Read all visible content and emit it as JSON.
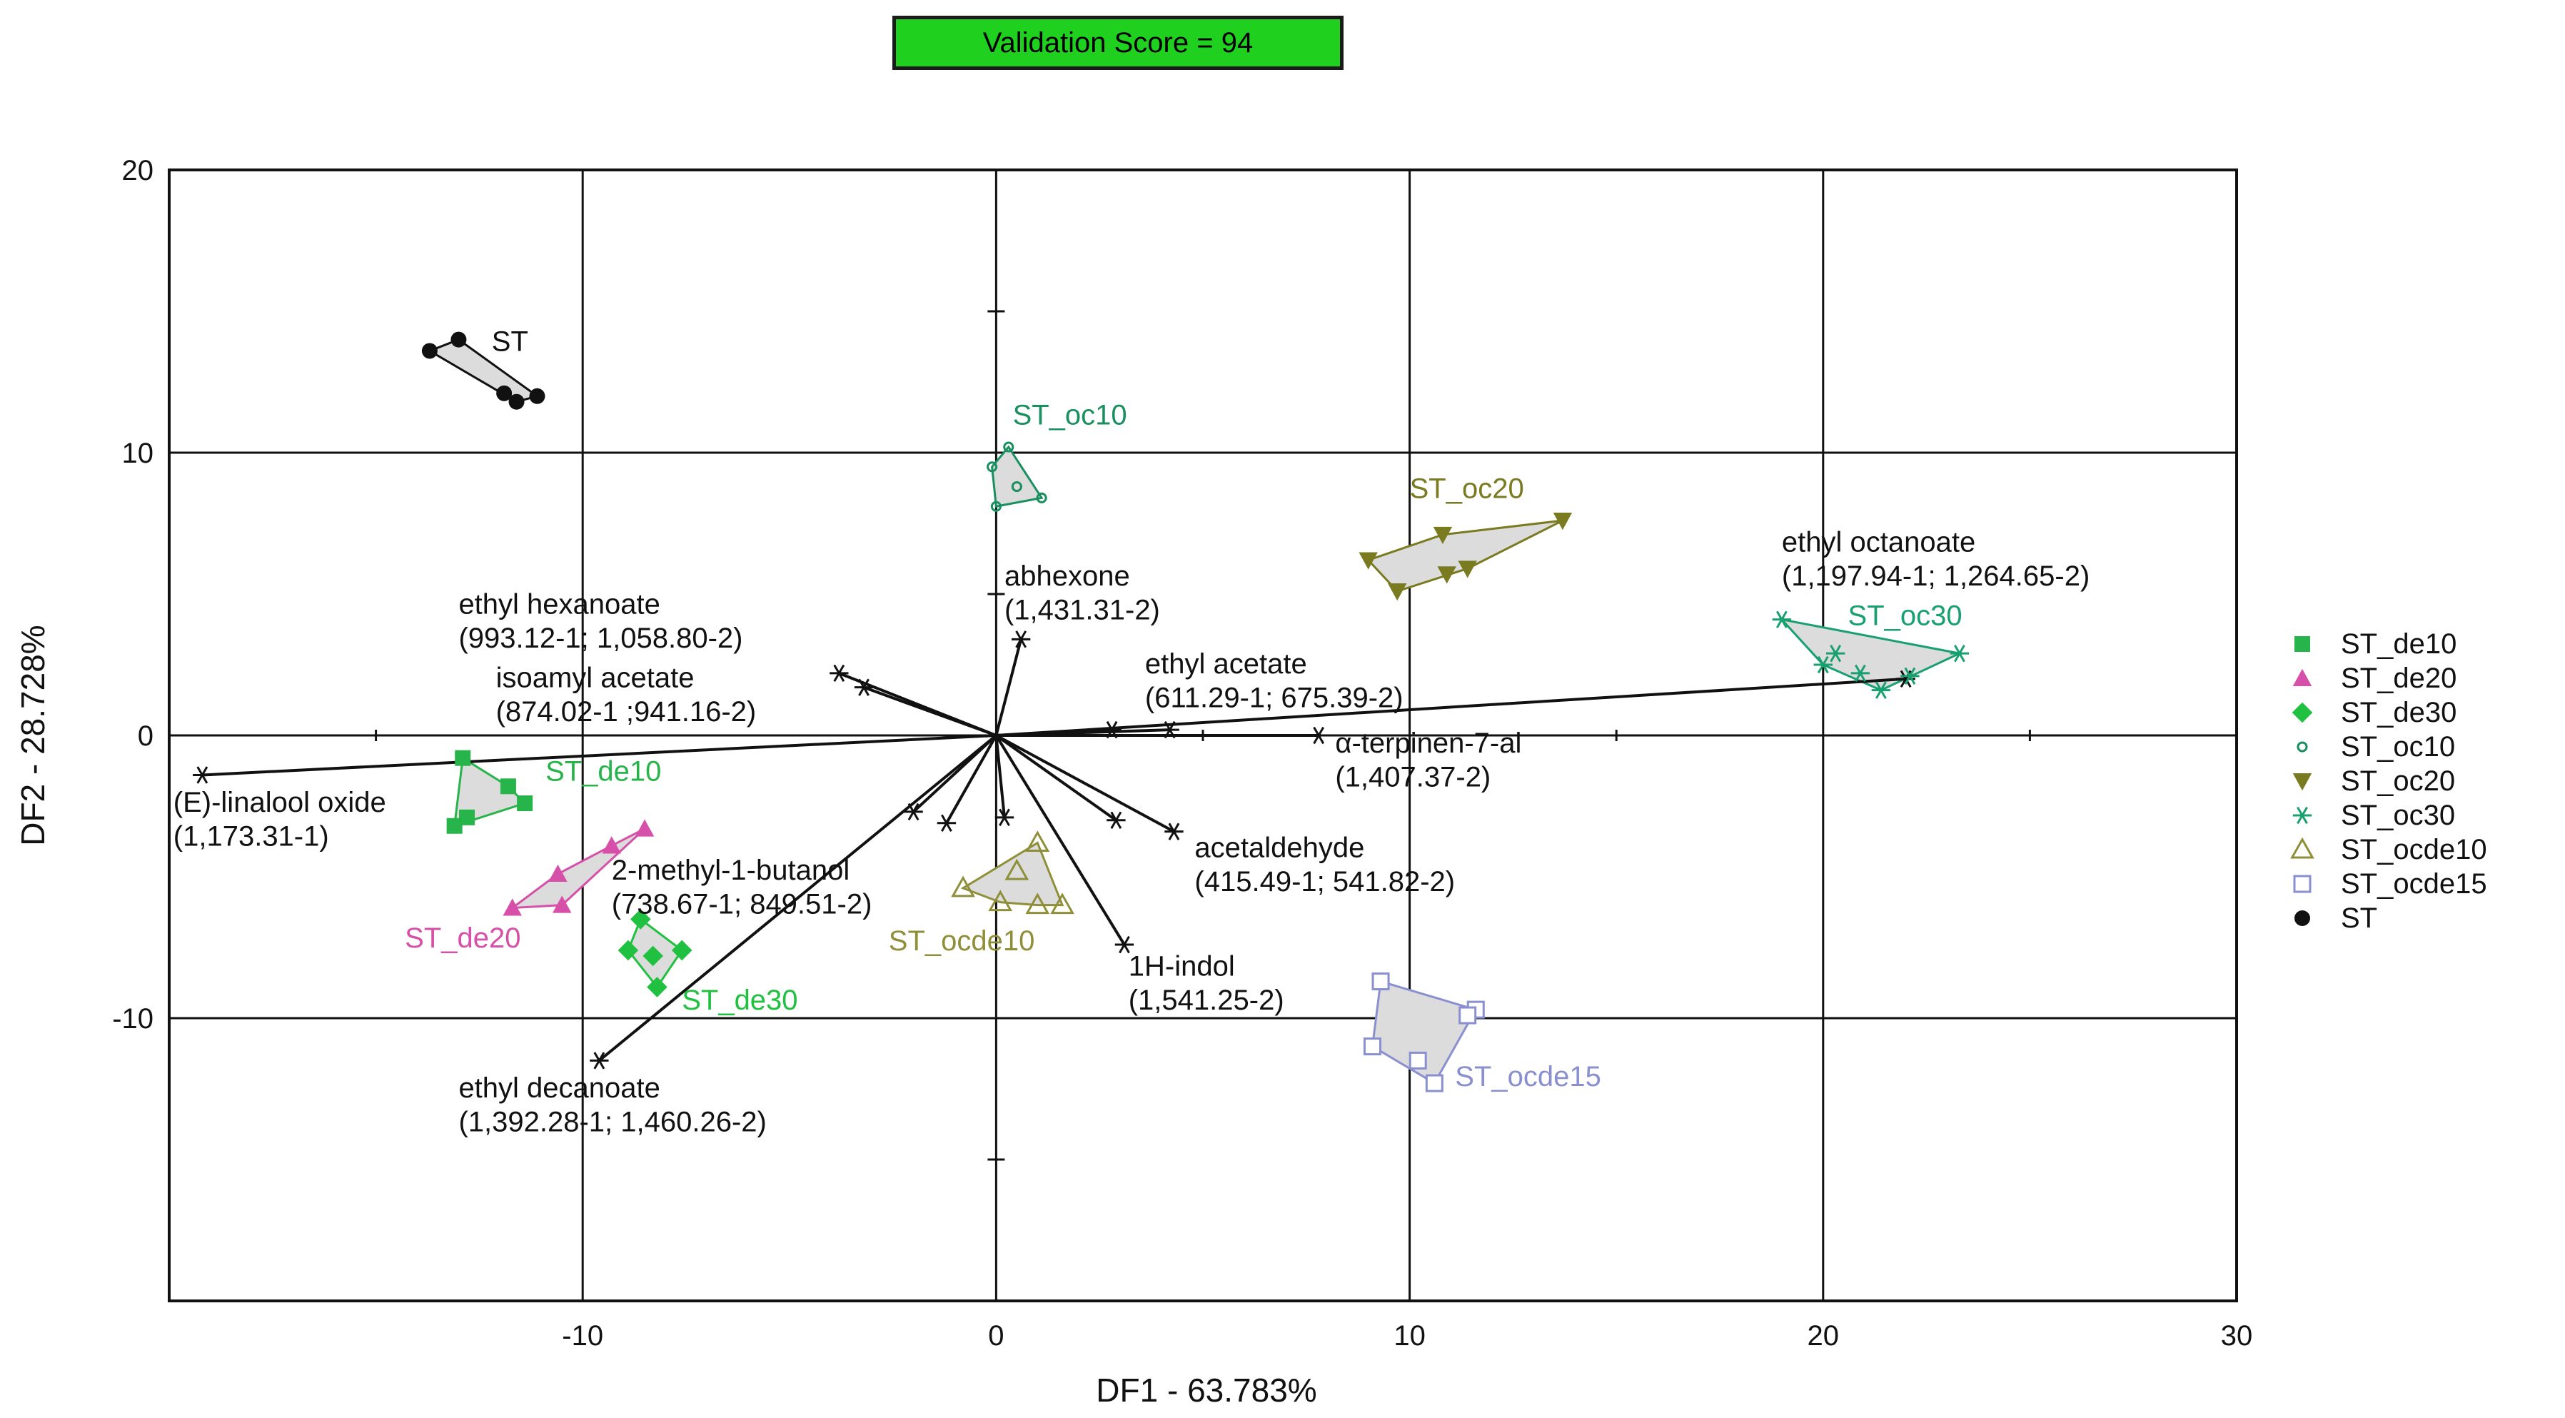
{
  "badge": {
    "label": "Validation Score = 94"
  },
  "axes": {
    "xlabel": "DF1 - 63.783%",
    "ylabel": "DF2 - 28.728%"
  },
  "chart_data": {
    "type": "scatter",
    "title": "",
    "xlabel": "DF1 - 63.783%",
    "ylabel": "DF2 - 28.728%",
    "xlim": [
      -20,
      30
    ],
    "ylim": [
      -20,
      20
    ],
    "xticks": [
      -10,
      0,
      10,
      20,
      30
    ],
    "yticks": [
      20,
      10,
      0,
      -10
    ],
    "grid": true,
    "legend_position": "right",
    "groups": [
      {
        "name": "ST_de10",
        "color": "#27b44a",
        "marker": "square-filled",
        "label": "ST_de10",
        "points": [
          [
            -12.9,
            -0.8
          ],
          [
            -13.1,
            -3.2
          ],
          [
            -12.8,
            -2.9
          ],
          [
            -11.8,
            -1.8
          ],
          [
            -11.4,
            -2.4
          ]
        ]
      },
      {
        "name": "ST_de20",
        "color": "#d64fa8",
        "marker": "triangle-filled",
        "label": "ST_de20",
        "points": [
          [
            -11.7,
            -6.1
          ],
          [
            -10.5,
            -6.0
          ],
          [
            -10.6,
            -4.9
          ],
          [
            -9.3,
            -3.9
          ],
          [
            -8.5,
            -3.3
          ]
        ]
      },
      {
        "name": "ST_de30",
        "color": "#20c040",
        "marker": "diamond-filled",
        "label": "ST_de30",
        "points": [
          [
            -8.9,
            -7.6
          ],
          [
            -8.6,
            -6.5
          ],
          [
            -8.3,
            -7.8
          ],
          [
            -8.2,
            -8.9
          ],
          [
            -7.6,
            -7.6
          ]
        ]
      },
      {
        "name": "ST_oc10",
        "color": "#1a9060",
        "marker": "circle-small",
        "label": "ST_oc10",
        "points": [
          [
            0.3,
            10.2
          ],
          [
            -0.1,
            9.5
          ],
          [
            0.0,
            8.1
          ],
          [
            1.1,
            8.4
          ],
          [
            0.5,
            8.8
          ]
        ]
      },
      {
        "name": "ST_oc20",
        "color": "#7a7a20",
        "marker": "triangle-down-filled",
        "label": "ST_oc20",
        "points": [
          [
            9.0,
            6.2
          ],
          [
            9.7,
            5.1
          ],
          [
            10.9,
            5.7
          ],
          [
            11.4,
            5.9
          ],
          [
            10.8,
            7.1
          ],
          [
            13.7,
            7.6
          ]
        ]
      },
      {
        "name": "ST_oc30",
        "color": "#18a070",
        "marker": "asterisk",
        "label": "ST_oc30",
        "points": [
          [
            19.0,
            4.1
          ],
          [
            20.0,
            2.5
          ],
          [
            20.3,
            2.9
          ],
          [
            20.9,
            2.2
          ],
          [
            21.4,
            1.6
          ],
          [
            22.1,
            2.1
          ],
          [
            23.3,
            2.9
          ]
        ]
      },
      {
        "name": "ST_ocde10",
        "color": "#8f8f3a",
        "marker": "triangle-open",
        "label": "ST_ocde10",
        "points": [
          [
            -0.8,
            -5.4
          ],
          [
            0.1,
            -5.9
          ],
          [
            1.0,
            -6.0
          ],
          [
            1.6,
            -6.0
          ],
          [
            1.0,
            -3.8
          ],
          [
            0.5,
            -4.8
          ]
        ]
      },
      {
        "name": "ST_ocde15",
        "color": "#8a8fd0",
        "marker": "square-open",
        "label": "ST_ocde15",
        "points": [
          [
            9.3,
            -8.7
          ],
          [
            9.1,
            -11.0
          ],
          [
            10.2,
            -11.5
          ],
          [
            10.6,
            -12.3
          ],
          [
            11.6,
            -9.7
          ],
          [
            11.4,
            -9.9
          ]
        ]
      },
      {
        "name": "ST",
        "color": "#111111",
        "marker": "circle-filled",
        "label": "ST",
        "points": [
          [
            -13.7,
            13.6
          ],
          [
            -13.0,
            14.0
          ],
          [
            -11.6,
            11.8
          ],
          [
            -11.1,
            12.0
          ],
          [
            -11.9,
            12.1
          ]
        ]
      }
    ],
    "vectors": [
      {
        "label": "(E)-linalool oxide",
        "value": "(1,173.31-1)",
        "x": -19.2,
        "y": -1.4
      },
      {
        "label": "ethyl hexanoate",
        "value": "(993.12-1; 1,058.80-2)",
        "x": -3.8,
        "y": 2.2
      },
      {
        "label": "isoamyl acetate",
        "value": "(874.02-1 ;941.16-2)",
        "x": -3.2,
        "y": 1.7
      },
      {
        "label": "abhexone",
        "value": "(1,431.31-2)",
        "x": 0.6,
        "y": 3.4
      },
      {
        "label": "ethyl acetate",
        "value": "(611.29-1; 675.39-2)",
        "x": 4.2,
        "y": 0.2
      },
      {
        "label": "α-terpinen-7-al",
        "value": "(1,407.37-2)",
        "x": 7.8,
        "y": 0.0
      },
      {
        "label": "ethyl octanoate",
        "value": "(1,197.94-1; 1,264.65-2)",
        "x": 22.0,
        "y": 2.0
      },
      {
        "label": "2-methyl-1-butanol",
        "value": "(738.67-1; 849.51-2)",
        "x": -1.2,
        "y": -3.1
      },
      {
        "label": "acetaldehyde",
        "value": "(415.49-1; 541.82-2)",
        "x": 4.3,
        "y": -3.4
      },
      {
        "label": "1H-indol",
        "value": "(1,541.25-2)",
        "x": 3.1,
        "y": -7.4
      },
      {
        "label": "ethyl decanoate",
        "value": "(1,392.28-1; 1,460.26-2)",
        "x": -9.6,
        "y": -11.5
      },
      {
        "label": "",
        "value": "",
        "x": -2.0,
        "y": -2.7
      },
      {
        "label": "",
        "value": "",
        "x": 0.2,
        "y": -2.9
      },
      {
        "label": "",
        "value": "",
        "x": 2.8,
        "y": 0.2
      },
      {
        "label": "",
        "value": "",
        "x": 2.9,
        "y": -3.0
      }
    ]
  }
}
